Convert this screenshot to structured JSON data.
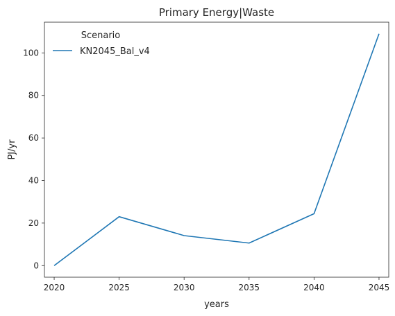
{
  "chart_data": {
    "type": "line",
    "title": "Primary Energy|Waste",
    "xlabel": "years",
    "ylabel": "PJ/yr",
    "x": [
      2020,
      2025,
      2030,
      2035,
      2040,
      2045
    ],
    "xticks": [
      "2020",
      "2025",
      "2030",
      "2035",
      "2040",
      "2045"
    ],
    "yticks": [
      "0",
      "20",
      "40",
      "60",
      "80",
      "100"
    ],
    "ytick_values": [
      0,
      20,
      40,
      60,
      80,
      100
    ],
    "xlim": [
      2019.25,
      2045.75
    ],
    "ylim": [
      -5.45,
      114.45
    ],
    "legend": {
      "title": "Scenario",
      "placement": "top-left"
    },
    "series": [
      {
        "name": "KN2045_Bal_v4",
        "color": "#1f77b4",
        "values": [
          0,
          23.0,
          14.1,
          10.6,
          24.4,
          109.0
        ]
      }
    ],
    "grid": false
  }
}
